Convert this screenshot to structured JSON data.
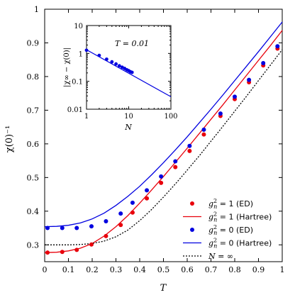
{
  "chart_data": [
    {
      "type": "scatter",
      "title": "",
      "xlabel": "T",
      "ylabel": "χ(0)⁻¹",
      "xlim": [
        0,
        1
      ],
      "ylim": [
        0.25,
        1.0
      ],
      "x_ticks": [
        "0",
        "0.1",
        "0.2",
        "0.3",
        "0.4",
        "0.5",
        "0.6",
        "0.7",
        "0.8",
        "0.9",
        "1"
      ],
      "y_ticks": [
        "0.3",
        "0.4",
        "0.5",
        "0.6",
        "0.7",
        "0.8",
        "0.9",
        "1"
      ],
      "grid": false,
      "legend_position": "bottom-right",
      "legend": [
        {
          "label": "g_n^2 = 1 (ED)",
          "label_main": "g",
          "label_sub": "n",
          "label_sup": "2",
          "label_rest": " = 1 (ED)",
          "kind": "points",
          "color": "#e8000b"
        },
        {
          "label": "g_n^2 = 1 (Hartree)",
          "label_main": "g",
          "label_sub": "n",
          "label_sup": "2",
          "label_rest": " = 1 (Hartree)",
          "kind": "line",
          "color": "#e8000b"
        },
        {
          "label": "g_n^2 = 0 (ED)",
          "label_main": "g",
          "label_sub": "n",
          "label_sup": "2",
          "label_rest": " = 0 (ED)",
          "kind": "points",
          "color": "#0000e0"
        },
        {
          "label": "g_n^2 = 0 (Hartree)",
          "label_main": "g",
          "label_sub": "n",
          "label_sup": "2",
          "label_rest": " = 0 (Hartree)",
          "kind": "line",
          "color": "#0000e0"
        },
        {
          "label": "N = ∞",
          "label_main": "N",
          "label_sub": "",
          "label_sup": "",
          "label_rest": " = ∞",
          "kind": "dotted",
          "color": "#000000"
        }
      ],
      "series": [
        {
          "style": "points",
          "color": "#e8000b",
          "x": [
            0.012,
            0.074,
            0.135,
            0.197,
            0.258,
            0.32,
            0.37,
            0.43,
            0.49,
            0.55,
            0.61,
            0.67,
            0.74,
            0.8,
            0.86,
            0.92,
            0.98
          ],
          "y": [
            0.277,
            0.279,
            0.285,
            0.301,
            0.326,
            0.359,
            0.396,
            0.438,
            0.484,
            0.531,
            0.579,
            0.628,
            0.683,
            0.733,
            0.783,
            0.833,
            0.883
          ]
        },
        {
          "style": "line",
          "color": "#e8000b",
          "x": [
            0,
            0.05,
            0.1,
            0.15,
            0.2,
            0.25,
            0.3,
            0.35,
            0.4,
            0.45,
            0.5,
            0.55,
            0.6,
            0.65,
            0.7,
            0.75,
            0.8,
            0.85,
            0.9,
            0.95,
            1.0
          ],
          "y": [
            0.277,
            0.278,
            0.282,
            0.29,
            0.304,
            0.326,
            0.354,
            0.387,
            0.424,
            0.463,
            0.503,
            0.545,
            0.587,
            0.63,
            0.673,
            0.716,
            0.76,
            0.804,
            0.848,
            0.892,
            0.937
          ]
        },
        {
          "style": "points",
          "color": "#0000e0",
          "x": [
            0.012,
            0.074,
            0.135,
            0.197,
            0.258,
            0.32,
            0.37,
            0.43,
            0.49,
            0.55,
            0.61,
            0.67,
            0.74,
            0.8,
            0.86,
            0.92,
            0.98
          ],
          "y": [
            0.35,
            0.35,
            0.35,
            0.355,
            0.37,
            0.393,
            0.425,
            0.462,
            0.503,
            0.548,
            0.594,
            0.642,
            0.69,
            0.74,
            0.79,
            0.84,
            0.89
          ]
        },
        {
          "style": "line",
          "color": "#0000e0",
          "x": [
            0,
            0.05,
            0.1,
            0.15,
            0.2,
            0.25,
            0.3,
            0.35,
            0.4,
            0.45,
            0.5,
            0.55,
            0.6,
            0.65,
            0.7,
            0.75,
            0.8,
            0.85,
            0.9,
            0.95,
            1.0
          ],
          "y": [
            0.354,
            0.355,
            0.358,
            0.365,
            0.377,
            0.394,
            0.417,
            0.444,
            0.474,
            0.508,
            0.544,
            0.582,
            0.621,
            0.662,
            0.703,
            0.745,
            0.788,
            0.831,
            0.874,
            0.918,
            0.962
          ]
        },
        {
          "style": "dotted",
          "color": "#000000",
          "x": [
            0,
            0.05,
            0.1,
            0.15,
            0.2,
            0.25,
            0.3,
            0.35,
            0.4,
            0.45,
            0.5,
            0.55,
            0.6,
            0.65,
            0.7,
            0.75,
            0.8,
            0.85,
            0.9,
            0.95,
            1.0
          ],
          "y": [
            0.3,
            0.3,
            0.3,
            0.301,
            0.304,
            0.311,
            0.324,
            0.344,
            0.372,
            0.405,
            0.442,
            0.481,
            0.522,
            0.564,
            0.608,
            0.652,
            0.697,
            0.742,
            0.788,
            0.834,
            0.88
          ]
        }
      ]
    },
    {
      "type": "scatter",
      "title": "",
      "annotation": "T = 0.01",
      "xlabel": "N",
      "ylabel": "|χ∞ − χ(0)|",
      "x_scale": "log",
      "y_scale": "log",
      "xlim": [
        1,
        100
      ],
      "ylim": [
        0.01,
        10
      ],
      "x_ticks": [
        "1",
        "10",
        "100"
      ],
      "y_ticks": [
        "0.01",
        "0.1",
        "1",
        "10"
      ],
      "series": [
        {
          "style": "points",
          "color": "#0000e0",
          "x": [
            1,
            2,
            3,
            4,
            5,
            6,
            7,
            8,
            9,
            10,
            11,
            12
          ],
          "y": [
            1.3,
            0.85,
            0.62,
            0.5,
            0.42,
            0.36,
            0.32,
            0.29,
            0.26,
            0.24,
            0.22,
            0.21
          ]
        },
        {
          "style": "line",
          "color": "#0000e0",
          "x": [
            1,
            100
          ],
          "y": [
            1.35,
            0.028
          ]
        }
      ]
    }
  ]
}
